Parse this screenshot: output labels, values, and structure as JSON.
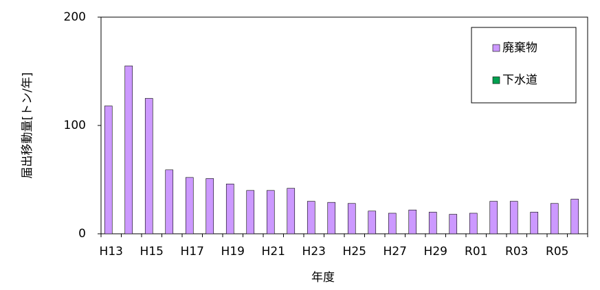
{
  "chart_data": {
    "type": "bar",
    "x_label": "年度",
    "y_label": "届出移動量[トン/年]",
    "categories": [
      "H13",
      null,
      "H15",
      null,
      "H17",
      null,
      "H19",
      null,
      "H21",
      null,
      "H23",
      null,
      "H25",
      null,
      "H27",
      null,
      "H29",
      null,
      "R01",
      null,
      "R03",
      null,
      "R05",
      null
    ],
    "series": [
      {
        "name": "廃棄物",
        "color": "#cc99ff",
        "values": [
          118,
          155,
          125,
          59,
          52,
          51,
          46,
          40,
          40,
          42,
          30,
          29,
          28,
          21,
          19,
          22,
          20,
          18,
          19,
          30,
          30,
          20,
          28,
          32
        ]
      },
      {
        "name": "下水道",
        "color": "#00a050",
        "values": [
          0,
          0,
          0,
          0,
          0,
          0,
          0,
          0,
          0,
          0,
          0,
          0,
          0,
          0,
          0,
          0,
          0,
          0,
          0,
          0,
          0,
          0,
          0,
          0
        ]
      }
    ],
    "ylim": [
      0,
      200
    ],
    "yticks": [
      0,
      100,
      200
    ],
    "legend": "top-right"
  }
}
